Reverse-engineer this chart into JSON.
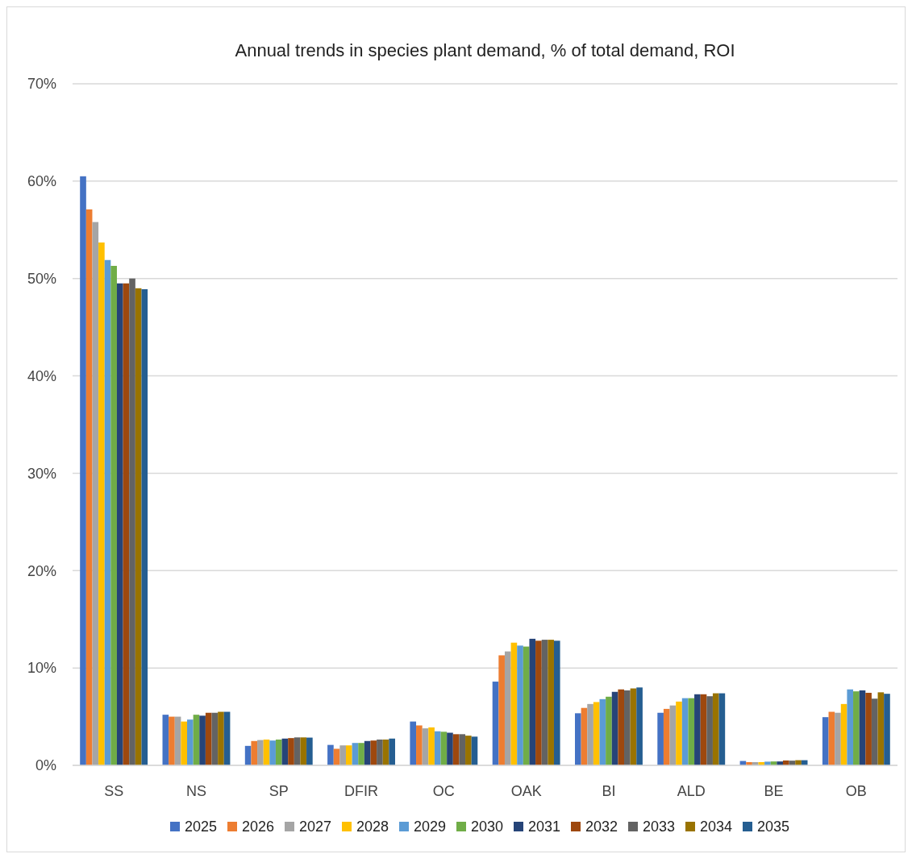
{
  "chart_data": {
    "type": "bar",
    "title": "Annual trends in species plant demand, % of total demand, ROI",
    "categories": [
      "SS",
      "NS",
      "SP",
      "DFIR",
      "OC",
      "OAK",
      "BI",
      "ALD",
      "BE",
      "OB"
    ],
    "series": [
      {
        "name": "2025",
        "color": "#4472c4",
        "values": [
          60.5,
          5.2,
          2.0,
          2.1,
          4.5,
          8.6,
          5.35,
          5.4,
          0.45,
          4.95
        ]
      },
      {
        "name": "2026",
        "color": "#ed7d31",
        "values": [
          57.1,
          5.0,
          2.5,
          1.7,
          4.1,
          11.3,
          5.9,
          5.8,
          0.33,
          5.5
        ]
      },
      {
        "name": "2027",
        "color": "#a5a5a5",
        "values": [
          55.8,
          5.0,
          2.6,
          2.05,
          3.8,
          11.7,
          6.3,
          6.15,
          0.33,
          5.4
        ]
      },
      {
        "name": "2028",
        "color": "#ffc000",
        "values": [
          53.7,
          4.5,
          2.65,
          2.05,
          3.9,
          12.6,
          6.5,
          6.55,
          0.33,
          6.3
        ]
      },
      {
        "name": "2029",
        "color": "#5b9bd5",
        "values": [
          51.9,
          4.7,
          2.55,
          2.3,
          3.5,
          12.3,
          6.8,
          6.9,
          0.38,
          7.8
        ]
      },
      {
        "name": "2030",
        "color": "#70ad47",
        "values": [
          51.3,
          5.2,
          2.65,
          2.3,
          3.45,
          12.2,
          7.05,
          6.9,
          0.4,
          7.6
        ]
      },
      {
        "name": "2031",
        "color": "#264478",
        "values": [
          49.5,
          5.1,
          2.75,
          2.5,
          3.35,
          13.0,
          7.55,
          7.3,
          0.4,
          7.7
        ]
      },
      {
        "name": "2032",
        "color": "#9e480e",
        "values": [
          49.5,
          5.4,
          2.8,
          2.55,
          3.2,
          12.8,
          7.8,
          7.3,
          0.5,
          7.45
        ]
      },
      {
        "name": "2033",
        "color": "#636363",
        "values": [
          50.0,
          5.4,
          2.87,
          2.65,
          3.2,
          12.9,
          7.7,
          7.1,
          0.48,
          6.85
        ]
      },
      {
        "name": "2034",
        "color": "#997300",
        "values": [
          49.0,
          5.5,
          2.87,
          2.65,
          3.05,
          12.9,
          7.9,
          7.4,
          0.53,
          7.5
        ]
      },
      {
        "name": "2035",
        "color": "#255e91",
        "values": [
          48.9,
          5.5,
          2.85,
          2.75,
          2.95,
          12.8,
          8.0,
          7.4,
          0.53,
          7.35
        ]
      }
    ],
    "ylim": [
      0,
      70
    ],
    "yticks": [
      {
        "value": 0,
        "label": "0%"
      },
      {
        "value": 10,
        "label": "10%"
      },
      {
        "value": 20,
        "label": "20%"
      },
      {
        "value": 30,
        "label": "30%"
      },
      {
        "value": 40,
        "label": "40%"
      },
      {
        "value": 50,
        "label": "50%"
      },
      {
        "value": 60,
        "label": "60%"
      },
      {
        "value": 70,
        "label": "70%"
      }
    ],
    "grid": "y",
    "legend": "bottom"
  }
}
